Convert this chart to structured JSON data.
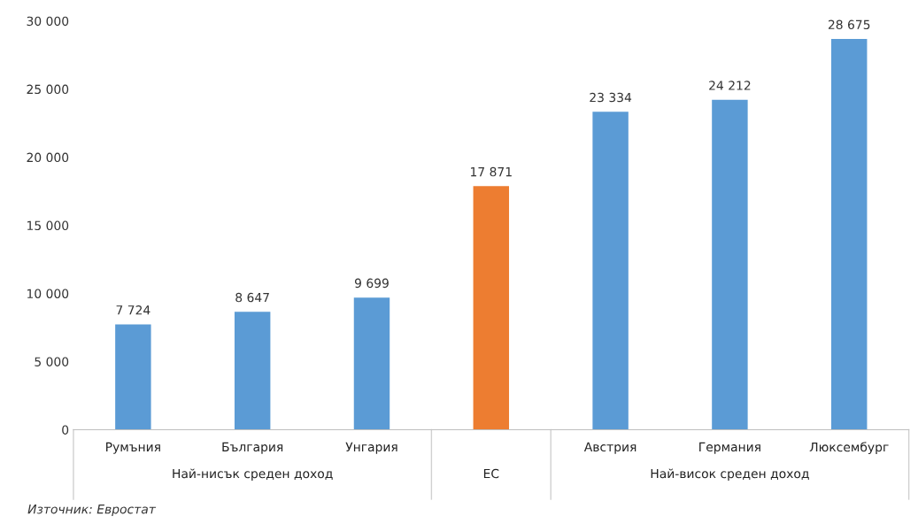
{
  "chart_data": {
    "type": "bar",
    "categories": [
      "Румъния",
      "България",
      "Унгария",
      null,
      "Австрия",
      "Германия",
      "Люксембург"
    ],
    "values": [
      7724,
      8647,
      9699,
      17871,
      23334,
      24212,
      28675
    ],
    "value_labels": [
      "7 724",
      "8 647",
      "9 699",
      "17 871",
      "23 334",
      "24 212",
      "28 675"
    ],
    "colors": [
      "#5b9bd5",
      "#5b9bd5",
      "#5b9bd5",
      "#ed7d31",
      "#5b9bd5",
      "#5b9bd5",
      "#5b9bd5"
    ],
    "ylim": [
      0,
      30000
    ],
    "yticks": [
      0,
      {
        "value": 5000,
        "label": "5 000"
      },
      {
        "value": 10000,
        "label": "10 000"
      },
      {
        "value": 15000,
        "label": "15 000"
      },
      {
        "value": 20000,
        "label": "20 000"
      },
      {
        "value": 25000,
        "label": "25 000"
      },
      {
        "value": 30000,
        "label": "30 000"
      }
    ],
    "grid": false,
    "annotations": [
      "Най-нисък среден доход",
      "ЕС",
      "Най-висок среден доход",
      "Източник: Евростат"
    ]
  }
}
